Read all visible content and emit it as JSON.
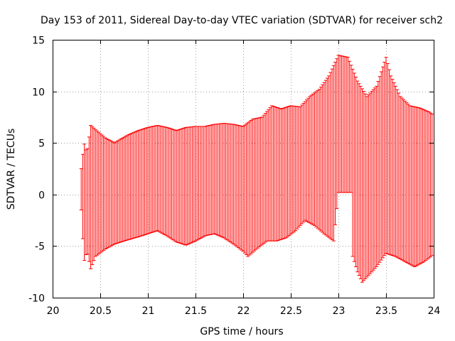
{
  "chart_data": {
    "type": "errorbar",
    "title": "Day 153 of 2011, Sidereal Day-to-day VTEC variation (SDTVAR) for receiver sch2",
    "xlabel": "GPS time / hours",
    "ylabel": "SDTVAR / TECUs",
    "xlim": [
      20,
      24
    ],
    "ylim": [
      -10,
      15
    ],
    "xticks": [
      "20",
      "20.5",
      "21",
      "21.5",
      "22",
      "22.5",
      "23",
      "23.5",
      "24"
    ],
    "yticks": [
      "-10",
      "-5",
      "0",
      "5",
      "10",
      "15"
    ],
    "grid": true,
    "series": [
      {
        "name": "SDTVAR",
        "color": "#ff0000",
        "x_start": 20.3,
        "x_end": 24.0,
        "x_step": 0.0166667,
        "upper_envelope": [
          [
            20.3,
            2.5
          ],
          [
            20.33,
            5.0
          ],
          [
            20.36,
            4.0
          ],
          [
            20.4,
            6.7
          ],
          [
            20.45,
            6.3
          ],
          [
            20.55,
            5.5
          ],
          [
            20.65,
            5.0
          ],
          [
            20.72,
            5.4
          ],
          [
            20.8,
            5.8
          ],
          [
            20.9,
            6.2
          ],
          [
            21.0,
            6.5
          ],
          [
            21.1,
            6.7
          ],
          [
            21.2,
            6.5
          ],
          [
            21.3,
            6.2
          ],
          [
            21.4,
            6.5
          ],
          [
            21.5,
            6.6
          ],
          [
            21.6,
            6.6
          ],
          [
            21.7,
            6.8
          ],
          [
            21.8,
            6.9
          ],
          [
            21.9,
            6.8
          ],
          [
            22.0,
            6.6
          ],
          [
            22.1,
            7.3
          ],
          [
            22.2,
            7.5
          ],
          [
            22.3,
            8.6
          ],
          [
            22.4,
            8.3
          ],
          [
            22.5,
            8.6
          ],
          [
            22.6,
            8.5
          ],
          [
            22.7,
            9.5
          ],
          [
            22.8,
            10.2
          ],
          [
            22.9,
            11.5
          ],
          [
            23.0,
            13.5
          ],
          [
            23.1,
            13.3
          ],
          [
            23.2,
            11.0
          ],
          [
            23.3,
            9.5
          ],
          [
            23.4,
            10.5
          ],
          [
            23.5,
            13.3
          ],
          [
            23.55,
            11.5
          ],
          [
            23.65,
            9.5
          ],
          [
            23.75,
            8.6
          ],
          [
            23.85,
            8.4
          ],
          [
            23.95,
            8.0
          ],
          [
            24.0,
            7.7
          ]
        ],
        "lower_envelope": [
          [
            20.3,
            -1.5
          ],
          [
            20.33,
            -6.5
          ],
          [
            20.36,
            -5.5
          ],
          [
            20.4,
            -7.2
          ],
          [
            20.45,
            -6.0
          ],
          [
            20.55,
            -5.3
          ],
          [
            20.65,
            -4.8
          ],
          [
            20.75,
            -4.5
          ],
          [
            20.9,
            -4.1
          ],
          [
            21.0,
            -3.8
          ],
          [
            21.1,
            -3.5
          ],
          [
            21.2,
            -4.0
          ],
          [
            21.3,
            -4.6
          ],
          [
            21.4,
            -4.9
          ],
          [
            21.5,
            -4.5
          ],
          [
            21.6,
            -4.0
          ],
          [
            21.7,
            -3.8
          ],
          [
            21.8,
            -4.2
          ],
          [
            21.9,
            -4.8
          ],
          [
            22.0,
            -5.5
          ],
          [
            22.05,
            -6.0
          ],
          [
            22.15,
            -5.2
          ],
          [
            22.25,
            -4.5
          ],
          [
            22.35,
            -4.5
          ],
          [
            22.45,
            -4.2
          ],
          [
            22.55,
            -3.5
          ],
          [
            22.65,
            -2.5
          ],
          [
            22.75,
            -3.0
          ],
          [
            22.85,
            -3.8
          ],
          [
            22.95,
            -4.5
          ],
          [
            23.0,
            0.2
          ],
          [
            23.14,
            0.2
          ],
          [
            23.15,
            -6.0
          ],
          [
            23.2,
            -7.5
          ],
          [
            23.25,
            -8.5
          ],
          [
            23.3,
            -8.0
          ],
          [
            23.4,
            -7.0
          ],
          [
            23.5,
            -5.7
          ],
          [
            23.6,
            -6.0
          ],
          [
            23.7,
            -6.5
          ],
          [
            23.8,
            -7.0
          ],
          [
            23.9,
            -6.5
          ],
          [
            24.0,
            -5.8
          ]
        ]
      }
    ]
  }
}
